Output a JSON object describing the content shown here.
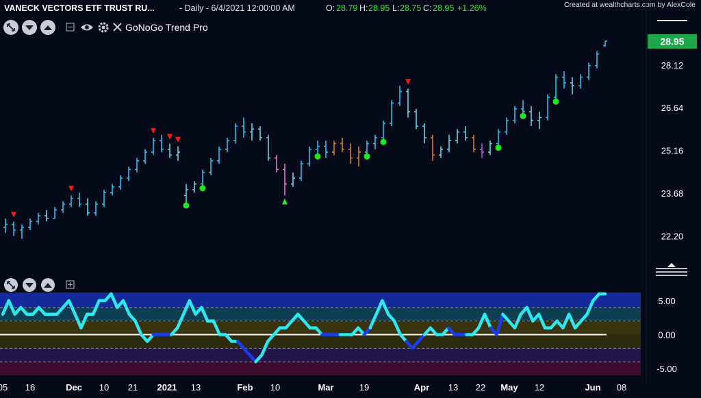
{
  "header": {
    "symbol": "VANECK VECTORS ETF TRUST RU...",
    "interval": "- Daily - 6/4/2021 12:00:00 AM",
    "o_label": "O:",
    "o_value": "28.79",
    "h_label": "H:",
    "h_value": "28.95",
    "l_label": "L:",
    "l_value": "28.75",
    "c_label": "C:",
    "c_value": "28.95",
    "change": "+1.26%",
    "credit": "Created at wealthcharts.com by AlexCole"
  },
  "toolbar": {
    "indicator_name": "GoNoGo Trend Pro",
    "icons": [
      "arrows-out-icon",
      "chevron-down-icon",
      "chevron-up-icon",
      "collapse-icon",
      "eye-icon",
      "gear-icon",
      "close-icon"
    ]
  },
  "colors": {
    "background": "#050a18",
    "price_tag": "#1ea64b",
    "go_strong": "#33bdf0",
    "go_weak": "#6ad1e8",
    "nogo_amber": "#e07a2a",
    "nogo_pink": "#e07ae0",
    "nogo_purple": "#b059d8",
    "osc_light": "#2ee8f0",
    "osc_dark": "#1a3cf0",
    "triangle_down": "#ff1a1a",
    "triangle_up": "#2ee82e",
    "dot": "#1ee81e"
  },
  "chart_data": [
    {
      "type": "ohlc",
      "name_label": "GoNoGo Trend Pro",
      "last_price": "28.95",
      "y_ticks": [
        "28.12",
        "26.64",
        "25.16",
        "23.68",
        "22.20"
      ],
      "y_tick_values": [
        28.12,
        26.64,
        25.16,
        23.68,
        22.2
      ],
      "ylim": [
        21.0,
        29.8
      ],
      "x_tick_labels": [
        "05",
        "16",
        "Dec",
        "10",
        "21",
        "2021",
        "13",
        "Feb",
        "10",
        "Mar",
        "19",
        "Apr",
        "13",
        "22",
        "May",
        "12",
        "Jun",
        "08"
      ],
      "bars": [
        {
          "o": 22.5,
          "h": 22.8,
          "l": 22.3,
          "c": 22.6,
          "k": "go"
        },
        {
          "o": 22.6,
          "h": 22.7,
          "l": 22.2,
          "c": 22.4,
          "k": "go"
        },
        {
          "o": 22.4,
          "h": 22.6,
          "l": 22.1,
          "c": 22.5,
          "k": "go"
        },
        {
          "o": 22.5,
          "h": 22.8,
          "l": 22.4,
          "c": 22.7,
          "k": "go"
        },
        {
          "o": 22.7,
          "h": 23.0,
          "l": 22.6,
          "c": 22.9,
          "k": "go"
        },
        {
          "o": 22.9,
          "h": 23.1,
          "l": 22.7,
          "c": 22.8,
          "k": "go_weak"
        },
        {
          "o": 22.8,
          "h": 23.2,
          "l": 22.8,
          "c": 23.1,
          "k": "go"
        },
        {
          "o": 23.1,
          "h": 23.4,
          "l": 23.0,
          "c": 23.3,
          "k": "go"
        },
        {
          "o": 23.3,
          "h": 23.6,
          "l": 23.2,
          "c": 23.5,
          "k": "go"
        },
        {
          "o": 23.5,
          "h": 23.7,
          "l": 23.2,
          "c": 23.3,
          "k": "go"
        },
        {
          "o": 23.3,
          "h": 23.5,
          "l": 22.9,
          "c": 23.0,
          "k": "go_weak"
        },
        {
          "o": 23.0,
          "h": 23.4,
          "l": 22.9,
          "c": 23.3,
          "k": "go"
        },
        {
          "o": 23.3,
          "h": 23.8,
          "l": 23.2,
          "c": 23.7,
          "k": "go"
        },
        {
          "o": 23.7,
          "h": 24.0,
          "l": 23.6,
          "c": 23.9,
          "k": "go"
        },
        {
          "o": 23.9,
          "h": 24.3,
          "l": 23.8,
          "c": 24.2,
          "k": "go"
        },
        {
          "o": 24.2,
          "h": 24.6,
          "l": 24.1,
          "c": 24.5,
          "k": "go"
        },
        {
          "o": 24.5,
          "h": 24.9,
          "l": 24.4,
          "c": 24.8,
          "k": "go"
        },
        {
          "o": 24.8,
          "h": 25.2,
          "l": 24.7,
          "c": 25.1,
          "k": "go"
        },
        {
          "o": 25.1,
          "h": 25.6,
          "l": 25.0,
          "c": 25.5,
          "k": "go"
        },
        {
          "o": 25.5,
          "h": 25.7,
          "l": 25.1,
          "c": 25.2,
          "k": "go"
        },
        {
          "o": 25.2,
          "h": 25.4,
          "l": 24.9,
          "c": 25.0,
          "k": "go_weak"
        },
        {
          "o": 25.0,
          "h": 25.3,
          "l": 24.8,
          "c": 25.1,
          "k": "go_weak"
        },
        {
          "o": 23.6,
          "h": 24.0,
          "l": 23.3,
          "c": 23.8,
          "k": "go_weak"
        },
        {
          "o": 23.8,
          "h": 24.1,
          "l": 23.7,
          "c": 24.0,
          "k": "go_weak"
        },
        {
          "o": 24.0,
          "h": 24.5,
          "l": 23.9,
          "c": 24.4,
          "k": "go"
        },
        {
          "o": 24.4,
          "h": 24.9,
          "l": 24.3,
          "c": 24.8,
          "k": "go"
        },
        {
          "o": 24.8,
          "h": 25.3,
          "l": 24.7,
          "c": 25.2,
          "k": "go"
        },
        {
          "o": 25.2,
          "h": 25.6,
          "l": 25.1,
          "c": 25.5,
          "k": "go"
        },
        {
          "o": 25.5,
          "h": 26.1,
          "l": 25.4,
          "c": 26.0,
          "k": "go"
        },
        {
          "o": 26.0,
          "h": 26.3,
          "l": 25.6,
          "c": 25.8,
          "k": "go"
        },
        {
          "o": 25.8,
          "h": 26.1,
          "l": 25.5,
          "c": 25.9,
          "k": "go_weak"
        },
        {
          "o": 25.9,
          "h": 26.0,
          "l": 25.5,
          "c": 25.6,
          "k": "go_weak"
        },
        {
          "o": 25.6,
          "h": 25.7,
          "l": 24.8,
          "c": 24.9,
          "k": "go_weak"
        },
        {
          "o": 24.9,
          "h": 25.0,
          "l": 24.4,
          "c": 24.5,
          "k": "nogo_pink"
        },
        {
          "o": 24.5,
          "h": 24.7,
          "l": 23.6,
          "c": 24.0,
          "k": "nogo_pink"
        },
        {
          "o": 24.0,
          "h": 24.4,
          "l": 23.9,
          "c": 24.2,
          "k": "go_weak"
        },
        {
          "o": 24.2,
          "h": 24.8,
          "l": 24.1,
          "c": 24.7,
          "k": "go"
        },
        {
          "o": 24.7,
          "h": 25.3,
          "l": 24.6,
          "c": 25.2,
          "k": "go"
        },
        {
          "o": 25.2,
          "h": 25.5,
          "l": 25.0,
          "c": 25.3,
          "k": "go"
        },
        {
          "o": 25.3,
          "h": 25.5,
          "l": 24.9,
          "c": 25.1,
          "k": "go"
        },
        {
          "o": 25.1,
          "h": 25.5,
          "l": 25.0,
          "c": 25.4,
          "k": "nogo_amber"
        },
        {
          "o": 25.4,
          "h": 25.6,
          "l": 25.1,
          "c": 25.2,
          "k": "nogo_amber"
        },
        {
          "o": 25.2,
          "h": 25.4,
          "l": 24.7,
          "c": 24.9,
          "k": "nogo_amber"
        },
        {
          "o": 24.9,
          "h": 25.3,
          "l": 24.6,
          "c": 25.1,
          "k": "nogo_amber"
        },
        {
          "o": 25.1,
          "h": 25.5,
          "l": 25.0,
          "c": 25.4,
          "k": "go"
        },
        {
          "o": 25.4,
          "h": 25.7,
          "l": 25.2,
          "c": 25.6,
          "k": "go"
        },
        {
          "o": 25.6,
          "h": 26.2,
          "l": 25.5,
          "c": 26.1,
          "k": "go"
        },
        {
          "o": 26.1,
          "h": 26.9,
          "l": 26.0,
          "c": 26.8,
          "k": "go"
        },
        {
          "o": 26.8,
          "h": 27.4,
          "l": 26.7,
          "c": 27.2,
          "k": "go"
        },
        {
          "o": 27.2,
          "h": 27.3,
          "l": 26.3,
          "c": 26.5,
          "k": "go_weak"
        },
        {
          "o": 26.5,
          "h": 26.6,
          "l": 25.9,
          "c": 26.0,
          "k": "go_weak"
        },
        {
          "o": 26.0,
          "h": 26.1,
          "l": 25.4,
          "c": 25.6,
          "k": "go_weak"
        },
        {
          "o": 25.6,
          "h": 25.7,
          "l": 24.8,
          "c": 25.0,
          "k": "nogo_amber"
        },
        {
          "o": 25.0,
          "h": 25.3,
          "l": 24.9,
          "c": 25.2,
          "k": "go_weak"
        },
        {
          "o": 25.2,
          "h": 25.7,
          "l": 25.1,
          "c": 25.5,
          "k": "go_weak"
        },
        {
          "o": 25.5,
          "h": 25.9,
          "l": 25.4,
          "c": 25.8,
          "k": "go_weak"
        },
        {
          "o": 25.8,
          "h": 26.0,
          "l": 25.5,
          "c": 25.6,
          "k": "go_weak"
        },
        {
          "o": 25.6,
          "h": 25.7,
          "l": 25.1,
          "c": 25.2,
          "k": "nogo_amber"
        },
        {
          "o": 25.2,
          "h": 25.4,
          "l": 24.9,
          "c": 25.1,
          "k": "nogo_purple"
        },
        {
          "o": 25.1,
          "h": 25.5,
          "l": 25.0,
          "c": 25.4,
          "k": "go_weak"
        },
        {
          "o": 25.4,
          "h": 25.9,
          "l": 25.3,
          "c": 25.8,
          "k": "go"
        },
        {
          "o": 25.8,
          "h": 26.3,
          "l": 25.7,
          "c": 26.2,
          "k": "go"
        },
        {
          "o": 26.2,
          "h": 26.7,
          "l": 26.1,
          "c": 26.6,
          "k": "go"
        },
        {
          "o": 26.6,
          "h": 26.9,
          "l": 26.4,
          "c": 26.5,
          "k": "go"
        },
        {
          "o": 26.5,
          "h": 26.7,
          "l": 26.0,
          "c": 26.2,
          "k": "go_weak"
        },
        {
          "o": 26.2,
          "h": 26.5,
          "l": 25.9,
          "c": 26.3,
          "k": "go_weak"
        },
        {
          "o": 26.3,
          "h": 27.1,
          "l": 26.2,
          "c": 27.0,
          "k": "go"
        },
        {
          "o": 27.0,
          "h": 27.8,
          "l": 26.9,
          "c": 27.7,
          "k": "go"
        },
        {
          "o": 27.7,
          "h": 27.9,
          "l": 27.3,
          "c": 27.5,
          "k": "go"
        },
        {
          "o": 27.5,
          "h": 27.7,
          "l": 27.1,
          "c": 27.4,
          "k": "go_weak"
        },
        {
          "o": 27.4,
          "h": 27.8,
          "l": 27.3,
          "c": 27.7,
          "k": "go"
        },
        {
          "o": 27.7,
          "h": 28.2,
          "l": 27.6,
          "c": 28.1,
          "k": "go"
        },
        {
          "o": 28.1,
          "h": 28.6,
          "l": 28.0,
          "c": 28.5,
          "k": "go"
        },
        {
          "o": 28.79,
          "h": 28.95,
          "l": 28.75,
          "c": 28.95,
          "k": "go"
        }
      ],
      "signals": [
        {
          "bar": 1,
          "type": "triangle_down"
        },
        {
          "bar": 8,
          "type": "triangle_down"
        },
        {
          "bar": 18,
          "type": "triangle_down"
        },
        {
          "bar": 20,
          "type": "triangle_down"
        },
        {
          "bar": 21,
          "type": "triangle_down"
        },
        {
          "bar": 22,
          "type": "dot"
        },
        {
          "bar": 24,
          "type": "dot"
        },
        {
          "bar": 34,
          "type": "triangle_up"
        },
        {
          "bar": 38,
          "type": "dot"
        },
        {
          "bar": 44,
          "type": "dot"
        },
        {
          "bar": 46,
          "type": "dot"
        },
        {
          "bar": 49,
          "type": "triangle_down"
        },
        {
          "bar": 60,
          "type": "dot"
        },
        {
          "bar": 63,
          "type": "dot"
        },
        {
          "bar": 67,
          "type": "dot"
        }
      ]
    },
    {
      "type": "line",
      "toolbar_icons": [
        "arrows-out-icon",
        "chevron-down-icon",
        "chevron-up-icon",
        "add-pane-icon"
      ],
      "y_ticks": [
        "5.00",
        "0.00",
        "-5.00"
      ],
      "y_tick_values": [
        5,
        0,
        -5
      ],
      "ylim": [
        -6,
        6.2
      ],
      "zero_line": 0,
      "series": [
        {
          "values": [
            3,
            5,
            3,
            4,
            3,
            3,
            4,
            3,
            3,
            3,
            4,
            5,
            3,
            1,
            3,
            3,
            5,
            5,
            6,
            4,
            5,
            3,
            2,
            0,
            -1,
            0,
            0,
            0,
            0,
            1,
            3,
            5,
            3,
            4,
            2,
            2,
            0,
            0,
            -1,
            -1,
            -2,
            -3,
            -4,
            -3,
            -1,
            0,
            1,
            1,
            2,
            3,
            2,
            1,
            1,
            0,
            0,
            0,
            0,
            0,
            0,
            1,
            0,
            1,
            3,
            5,
            3,
            2,
            0,
            -1,
            -2,
            -1,
            0,
            1,
            0,
            0,
            1,
            0,
            0,
            0,
            0,
            1,
            3,
            1,
            0,
            3,
            2,
            1,
            3,
            4,
            2,
            3,
            1,
            1,
            2,
            1,
            3,
            1,
            2,
            3,
            5,
            6,
            6
          ]
        }
      ]
    }
  ]
}
